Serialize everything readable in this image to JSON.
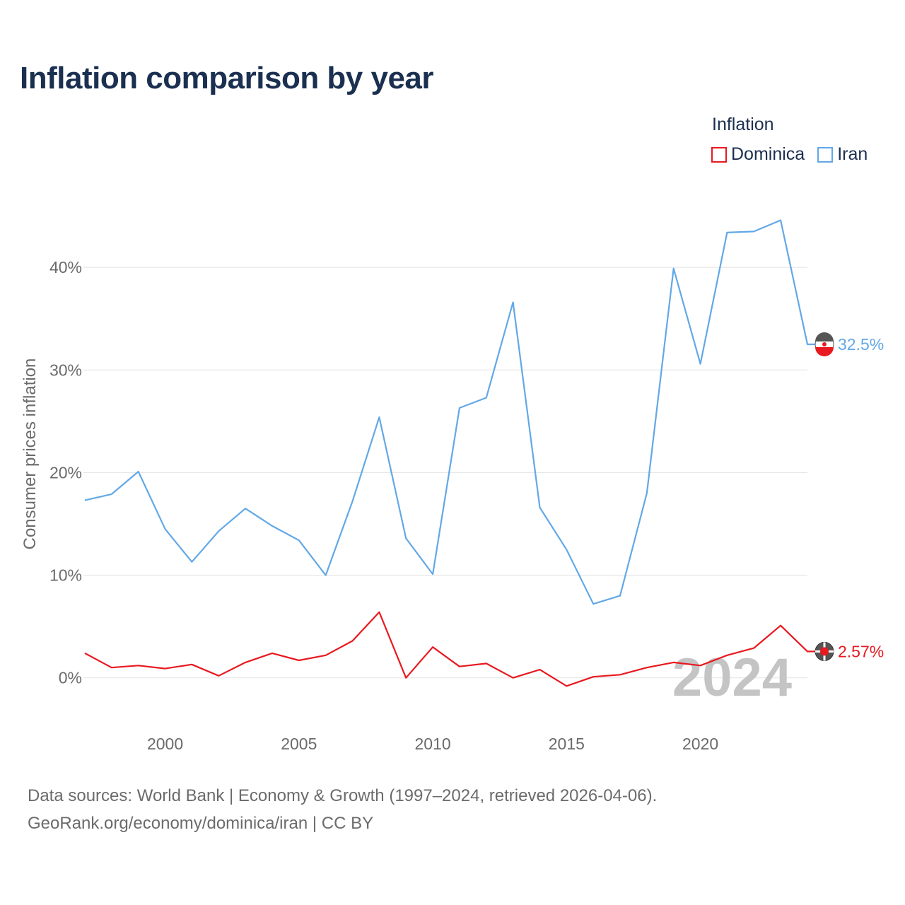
{
  "title": "Inflation comparison by year",
  "legend": {
    "title": "Inflation",
    "items": [
      {
        "name": "Dominica",
        "color": "#e8191f"
      },
      {
        "name": "Iran",
        "color": "#62a8e6"
      }
    ]
  },
  "footer": {
    "line1": "Data sources: World Bank | Economy & Growth (1997–2024, retrieved 2026-04-06).",
    "line2": "GeoRank.org/economy/dominica/iran | CC BY"
  },
  "chart_data": {
    "type": "line",
    "title": "Inflation comparison by year",
    "xlabel": "",
    "ylabel": "Consumer prices inflation",
    "xlim": [
      1997,
      2024
    ],
    "ylim": [
      -4.5,
      44.7
    ],
    "y_ticks": [
      0,
      10,
      20,
      30,
      40
    ],
    "y_tick_labels": [
      "0%",
      "10%",
      "20%",
      "30%",
      "40%"
    ],
    "x_ticks": [
      2000,
      2005,
      2010,
      2015,
      2020
    ],
    "x_tick_labels": [
      "2000",
      "2005",
      "2010",
      "2015",
      "2020"
    ],
    "grid": true,
    "legend_position": "top-right",
    "year_watermark": "2024",
    "x": [
      1997,
      1998,
      1999,
      2000,
      2001,
      2002,
      2003,
      2004,
      2005,
      2006,
      2007,
      2008,
      2009,
      2010,
      2011,
      2012,
      2013,
      2014,
      2015,
      2016,
      2017,
      2018,
      2019,
      2020,
      2021,
      2022,
      2023,
      2024
    ],
    "series": [
      {
        "name": "Dominica",
        "color": "#e8191f",
        "end_label": "2.57%",
        "values": [
          2.4,
          1.0,
          1.2,
          0.9,
          1.3,
          0.2,
          1.5,
          2.4,
          1.7,
          2.2,
          3.6,
          6.4,
          0.0,
          3.0,
          1.1,
          1.4,
          0.0,
          0.8,
          -0.8,
          0.1,
          0.3,
          1.0,
          1.5,
          1.2,
          2.2,
          2.9,
          5.1,
          2.57
        ]
      },
      {
        "name": "Iran",
        "color": "#62a8e6",
        "end_label": "32.5%",
        "values": [
          17.3,
          17.9,
          20.1,
          14.5,
          11.3,
          14.3,
          16.5,
          14.8,
          13.4,
          10.0,
          17.2,
          25.4,
          13.6,
          10.1,
          26.3,
          27.3,
          36.6,
          16.6,
          12.5,
          7.2,
          8.0,
          18.0,
          39.9,
          30.6,
          43.4,
          43.5,
          44.6,
          32.5
        ]
      }
    ]
  }
}
